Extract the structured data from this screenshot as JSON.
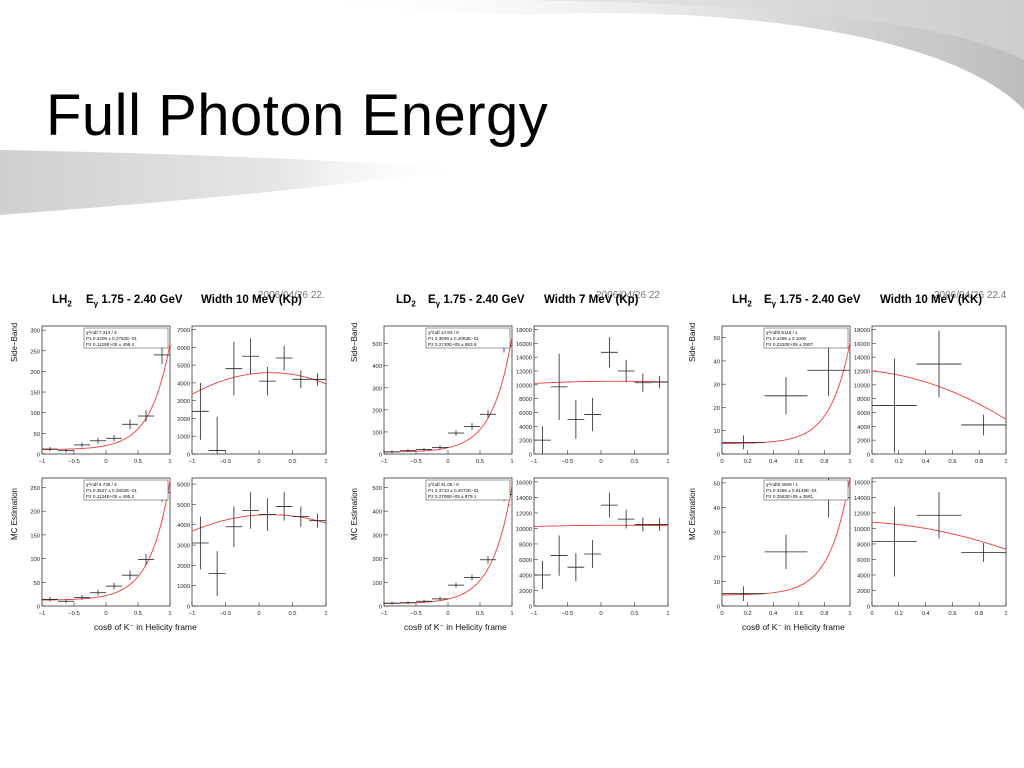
{
  "slide": {
    "title": "Full Photon Energy"
  },
  "groups": [
    {
      "label": "LH2",
      "label_main": "LH",
      "label_sub": "2",
      "energy_prefix": "E",
      "energy_sub": "γ",
      "energy_range": "1.75 - 2.40 GeV",
      "width": "Width 10 MeV (Kp)",
      "date_stamp": "2006/04/26   22."
    },
    {
      "label": "LD2",
      "label_main": "LD",
      "label_sub": "2",
      "energy_prefix": "E",
      "energy_sub": "γ",
      "energy_range": "1.75 - 2.40 GeV",
      "width": "Width 7 MeV (Kp)",
      "date_stamp": "2006/04/26   22"
    },
    {
      "label": "LH2",
      "label_main": "LH",
      "label_sub": "2",
      "energy_prefix": "E",
      "energy_sub": "γ",
      "energy_range": "1.75 - 2.40 GeV",
      "width": "Width 10 MeV (KK)",
      "date_stamp": "2006/04/26   22.4"
    }
  ],
  "labels": {
    "side_band": "Side−Band",
    "mc_estimation": "MC Estimation",
    "xaxis": "cosθ of K⁻ in Helicity frame"
  },
  "colors": {
    "fit_curve": "#e8413c",
    "data_points": "#222222",
    "frame": "#333333"
  },
  "chart_data": [
    {
      "id": "g1-sideband-left",
      "type": "scatter",
      "xlim": [
        -1,
        1
      ],
      "ylim": [
        0,
        310
      ],
      "xticks": [
        -1,
        -0.5,
        0,
        0.5,
        1
      ],
      "xtick_labels": [
        "−1",
        "−0.5",
        "0",
        "0.5",
        "1"
      ],
      "yticks": [
        0,
        50,
        100,
        150,
        200,
        250,
        300
      ],
      "ytick_labels": [
        "0",
        "50",
        "100",
        "150",
        "200",
        "250",
        "300"
      ],
      "x": [
        -0.875,
        -0.625,
        -0.375,
        -0.125,
        0.125,
        0.375,
        0.625,
        0.875
      ],
      "y": [
        12,
        8,
        22,
        32,
        38,
        72,
        92,
        240
      ],
      "err": [
        5,
        4,
        6,
        7,
        8,
        12,
        14,
        22
      ],
      "fit": {
        "type": "exp",
        "p1": 0.3409,
        "p2": 11290,
        "scale": 1.9
      },
      "stats": [
        "χ²/ndf  7.313  /   6",
        "P1        0.3409 ±  0.2762E−01",
        "P2       0.1129E+05 ±   498.4"
      ]
    },
    {
      "id": "g1-sideband-right",
      "type": "scatter",
      "xlim": [
        -1,
        1
      ],
      "ylim": [
        0,
        7200
      ],
      "xticks": [
        -1,
        -0.5,
        0,
        0.5,
        1
      ],
      "xtick_labels": [
        "−1",
        "−0.5",
        "0",
        "0.5",
        "1"
      ],
      "yticks": [
        0,
        1000,
        2000,
        3000,
        4000,
        5000,
        6000,
        7000
      ],
      "ytick_labels": [
        "0",
        "1000",
        "2000",
        "3000",
        "4000",
        "5000",
        "6000",
        "7000"
      ],
      "x": [
        -0.875,
        -0.625,
        -0.375,
        -0.125,
        0.125,
        0.375,
        0.625,
        0.875
      ],
      "y": [
        2400,
        200,
        4800,
        5500,
        4100,
        5400,
        4200,
        4200
      ],
      "err": [
        1600,
        1900,
        1500,
        1000,
        800,
        700,
        500,
        350
      ],
      "fit": {
        "type": "quad",
        "a": 4550,
        "b": 300,
        "c": -900
      }
    },
    {
      "id": "g1-mc-left",
      "type": "scatter",
      "xlim": [
        -1,
        1
      ],
      "ylim": [
        0,
        270
      ],
      "xticks": [
        -1,
        -0.5,
        0,
        0.5,
        1
      ],
      "xtick_labels": [
        "−1",
        "−0.5",
        "0",
        "0.5",
        "1"
      ],
      "yticks": [
        0,
        50,
        100,
        150,
        200,
        250
      ],
      "ytick_labels": [
        "0",
        "50",
        "100",
        "150",
        "200",
        "250"
      ],
      "x": [
        -0.875,
        -0.625,
        -0.375,
        -0.125,
        0.125,
        0.375,
        0.625,
        0.875
      ],
      "y": [
        14,
        10,
        18,
        28,
        42,
        65,
        98,
        240
      ],
      "err": [
        5,
        4,
        5,
        6,
        7,
        10,
        12,
        20
      ],
      "fit": {
        "type": "exp",
        "p1": 0.3527,
        "p2": 11340,
        "scale": 1.9
      },
      "stats": [
        "χ²/ndf  6.735  /   6",
        "P1        0.3527 ±  0.2802E−01",
        "P2       0.1134E+05 ±   495.2"
      ]
    },
    {
      "id": "g1-mc-right",
      "type": "scatter",
      "xlim": [
        -1,
        1
      ],
      "ylim": [
        0,
        6300
      ],
      "xticks": [
        -1,
        -0.5,
        0,
        0.5,
        1
      ],
      "xtick_labels": [
        "−1",
        "−0.5",
        "0",
        "0.5",
        "1"
      ],
      "yticks": [
        0,
        1000,
        2000,
        3000,
        4000,
        5000,
        6000
      ],
      "ytick_labels": [
        "0",
        "1000",
        "2000",
        "3000",
        "4000",
        "5000",
        "6000"
      ],
      "x": [
        -0.875,
        -0.625,
        -0.375,
        -0.125,
        0.125,
        0.375,
        0.625,
        0.875
      ],
      "y": [
        3100,
        1600,
        3900,
        4700,
        4500,
        4900,
        4400,
        4200
      ],
      "err": [
        1300,
        1100,
        1000,
        900,
        800,
        700,
        500,
        350
      ],
      "fit": {
        "type": "quad",
        "a": 4480,
        "b": 200,
        "c": -600
      }
    },
    {
      "id": "g2-sideband-left",
      "type": "scatter",
      "xlim": [
        -1,
        1
      ],
      "ylim": [
        0,
        580
      ],
      "xticks": [
        -1,
        -0.5,
        0,
        0.5,
        1
      ],
      "xtick_labels": [
        "−1",
        "−0.5",
        "0",
        "0.5",
        "1"
      ],
      "yticks": [
        0,
        100,
        200,
        300,
        400,
        500
      ],
      "ytick_labels": [
        "0",
        "100",
        "200",
        "300",
        "400",
        "500"
      ],
      "x": [
        -0.875,
        -0.625,
        -0.375,
        -0.125,
        0.125,
        0.375,
        0.625,
        0.875
      ],
      "y": [
        10,
        15,
        20,
        30,
        95,
        125,
        180,
        490
      ],
      "err": [
        6,
        6,
        8,
        8,
        12,
        15,
        18,
        30
      ],
      "fit": {
        "type": "exp",
        "p1": 0.3606,
        "p2": 27300,
        "scale": 1.9
      },
      "stats": [
        "χ²/ndf  14.93  /   6",
        "P1        0.3606 ±  0.2063E−01",
        "P2       0.2730E+05 ±   883.9"
      ]
    },
    {
      "id": "g2-sideband-right",
      "type": "scatter",
      "xlim": [
        -1,
        1
      ],
      "ylim": [
        0,
        18500
      ],
      "xticks": [
        -1,
        -0.5,
        0,
        0.5,
        1
      ],
      "xtick_labels": [
        "−1",
        "−0.5",
        "0",
        "0.5",
        "1"
      ],
      "yticks": [
        0,
        2000,
        4000,
        6000,
        8000,
        10000,
        12000,
        14000,
        16000,
        18000
      ],
      "ytick_labels": [
        "0",
        "2000",
        "4000",
        "6000",
        "8000",
        "10000",
        "12000",
        "14000",
        "16000",
        "18000"
      ],
      "x": [
        -0.875,
        -0.625,
        -0.375,
        -0.125,
        0.125,
        0.375,
        0.625,
        0.875
      ],
      "y": [
        2000,
        9700,
        5000,
        5700,
        14700,
        12000,
        10300,
        10400
      ],
      "err": [
        2000,
        4800,
        2800,
        2400,
        2200,
        1600,
        1300,
        900
      ],
      "fit": {
        "type": "quad",
        "a": 10500,
        "b": 100,
        "c": -200
      }
    },
    {
      "id": "g2-mc-left",
      "type": "scatter",
      "xlim": [
        -1,
        1
      ],
      "ylim": [
        0,
        540
      ],
      "xticks": [
        -1,
        -0.5,
        0,
        0.5,
        1
      ],
      "xtick_labels": [
        "−1",
        "−0.5",
        "0",
        "0.5",
        "1"
      ],
      "yticks": [
        0,
        100,
        200,
        300,
        400,
        500
      ],
      "ytick_labels": [
        "0",
        "100",
        "200",
        "300",
        "400",
        "500"
      ],
      "x": [
        -0.875,
        -0.625,
        -0.375,
        -0.125,
        0.125,
        0.375,
        0.625,
        0.875
      ],
      "y": [
        12,
        14,
        20,
        30,
        88,
        120,
        195,
        470
      ],
      "err": [
        6,
        6,
        7,
        8,
        10,
        12,
        16,
        28
      ],
      "fit": {
        "type": "exp",
        "p1": 0.371,
        "p2": 27060,
        "scale": 1.9
      },
      "stats": [
        "χ²/ndf  31.08  /   6",
        "P1        0.3710 ±  0.2072E−01",
        "P2       0.2706E+05 ±   879.1"
      ]
    },
    {
      "id": "g2-mc-right",
      "type": "scatter",
      "xlim": [
        -1,
        1
      ],
      "ylim": [
        0,
        16500
      ],
      "xticks": [
        -1,
        -0.5,
        0,
        0.5,
        1
      ],
      "xtick_labels": [
        "−1",
        "−0.5",
        "0",
        "0.5",
        "1"
      ],
      "yticks": [
        0,
        2000,
        4000,
        6000,
        8000,
        10000,
        12000,
        14000,
        16000
      ],
      "ytick_labels": [
        "0",
        "2000",
        "4000",
        "6000",
        "8000",
        "10000",
        "12000",
        "14000",
        "16000"
      ],
      "x": [
        -0.875,
        -0.625,
        -0.375,
        -0.125,
        0.125,
        0.375,
        0.625,
        0.875
      ],
      "y": [
        4000,
        6500,
        5000,
        6700,
        13000,
        11200,
        10500,
        10500
      ],
      "err": [
        1800,
        2600,
        1800,
        1800,
        1600,
        1200,
        900,
        800
      ],
      "fit": {
        "type": "quad",
        "a": 10400,
        "b": 50,
        "c": -100
      }
    },
    {
      "id": "g3-sideband-left",
      "type": "scatter",
      "xlim": [
        0,
        1
      ],
      "ylim": [
        0,
        55
      ],
      "xticks": [
        0,
        0.2,
        0.4,
        0.6,
        0.8,
        1
      ],
      "xtick_labels": [
        "0",
        "0.2",
        "0.4",
        "0.6",
        "0.8",
        "1"
      ],
      "yticks": [
        0,
        10,
        20,
        30,
        40,
        50
      ],
      "ytick_labels": [
        "0",
        "10",
        "20",
        "30",
        "40",
        "50"
      ],
      "x": [
        0.167,
        0.5,
        0.833
      ],
      "y": [
        5,
        25,
        36
      ],
      "xerr": [
        0.167,
        0.167,
        0.167
      ],
      "err": [
        3,
        8,
        11
      ],
      "fit": {
        "type": "exp",
        "p1": 0.2489,
        "p2": 23200,
        "scale": 1.9,
        "xoff": 0
      },
      "stats": [
        "χ²/ndf0.8115  /   1",
        "P1        0.2489 ±      0.1000",
        "P2       0.2320E+05 ±   2907."
      ]
    },
    {
      "id": "g3-sideband-right",
      "type": "scatter",
      "xlim": [
        0,
        1
      ],
      "ylim": [
        0,
        18500
      ],
      "xticks": [
        0,
        0.2,
        0.4,
        0.6,
        0.8,
        1
      ],
      "xtick_labels": [
        "0",
        "0.2",
        "0.4",
        "0.6",
        "0.8",
        "1"
      ],
      "yticks": [
        0,
        2000,
        4000,
        6000,
        8000,
        10000,
        12000,
        14000,
        16000,
        18000
      ],
      "ytick_labels": [
        "0",
        "2000",
        "4000",
        "6000",
        "8000",
        "10000",
        "12000",
        "14000",
        "16000",
        "18000"
      ],
      "x": [
        0.167,
        0.5,
        0.833
      ],
      "y": [
        7000,
        13000,
        4200
      ],
      "xerr": [
        0.167,
        0.167,
        0.167
      ],
      "err": [
        6800,
        4800,
        1500
      ],
      "fit": {
        "type": "quad01",
        "a": 12000,
        "b": -2000,
        "c": -5000
      }
    },
    {
      "id": "g3-mc-left",
      "type": "scatter",
      "xlim": [
        0,
        1
      ],
      "ylim": [
        0,
        52
      ],
      "xticks": [
        0,
        0.2,
        0.4,
        0.6,
        0.8,
        1
      ],
      "xtick_labels": [
        "0",
        "0.2",
        "0.4",
        "0.6",
        "0.8",
        "1"
      ],
      "yticks": [
        0,
        10,
        20,
        30,
        40,
        50
      ],
      "ytick_labels": [
        "0",
        "10",
        "20",
        "30",
        "40",
        "50"
      ],
      "x": [
        0.167,
        0.5,
        0.833
      ],
      "y": [
        5,
        22,
        44
      ],
      "xerr": [
        0.167,
        0.167,
        0.167
      ],
      "err": [
        3,
        7,
        8
      ],
      "fit": {
        "type": "exp",
        "p1": 0.3486,
        "p2": 25620,
        "scale": 1.9,
        "xoff": 0
      },
      "stats": [
        "χ²/ndf0.4608  /   1",
        "P1        0.3486 ±  0.9149E−01",
        "P2       0.2562E+05 ±   3561."
      ]
    },
    {
      "id": "g3-mc-right",
      "type": "scatter",
      "xlim": [
        0,
        1
      ],
      "ylim": [
        0,
        16500
      ],
      "xticks": [
        0,
        0.2,
        0.4,
        0.6,
        0.8,
        1
      ],
      "xtick_labels": [
        "0",
        "0.2",
        "0.4",
        "0.6",
        "0.8",
        "1"
      ],
      "yticks": [
        0,
        2000,
        4000,
        6000,
        8000,
        10000,
        12000,
        14000,
        16000
      ],
      "ytick_labels": [
        "0",
        "2000",
        "4000",
        "6000",
        "8000",
        "10000",
        "12000",
        "14000",
        "16000"
      ],
      "x": [
        0.167,
        0.5,
        0.833
      ],
      "y": [
        8300,
        11700,
        6900
      ],
      "xerr": [
        0.167,
        0.167,
        0.167
      ],
      "err": [
        4500,
        3000,
        1200
      ],
      "fit": {
        "type": "quad01",
        "a": 10800,
        "b": -1000,
        "c": -2500
      }
    }
  ]
}
